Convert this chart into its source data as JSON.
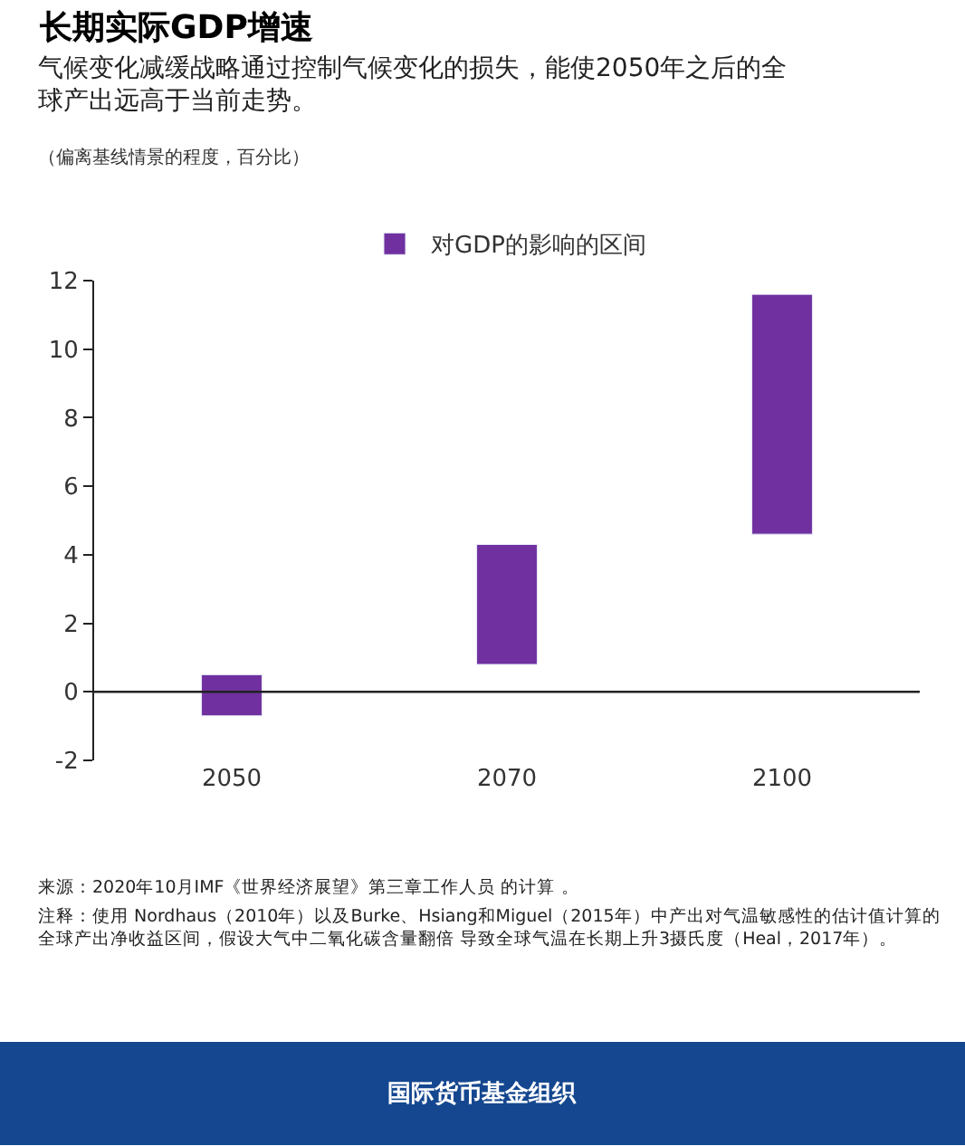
{
  "chart_data": {
    "type": "bar",
    "title": "长期实际GDP增速",
    "subtitle": "气候变化减缓战略通过控制气候变化的损失，能使2050年之后的全球产出远高于当前走势。",
    "categories": [
      "2050",
      "2070",
      "2100"
    ],
    "series": [
      {
        "name": "对GDP的影响的区间",
        "color": "#7030a0",
        "base": [
          -0.7,
          0.8,
          4.6
        ],
        "values": [
          1.2,
          3.5,
          7.0
        ]
      }
    ],
    "ylim": [
      -2,
      12
    ],
    "yticks": [
      -2,
      0,
      2,
      4,
      6,
      8,
      10,
      12
    ],
    "legend": "top",
    "ref_lines": [
      {
        "axis": "y",
        "value": 0,
        "color": "#222222"
      }
    ],
    "annotations": [
      "（偏离基线情景的程度，百分比）",
      "来源：2020年10月IMF《世界经济展望》第三章工作人员 的计算 。",
      "注释：使用 Nordhaus（2010年）以及Burke、Hsiang和Miguel（2015年）中产出对气温敏感性的估计值计算的全球产出净收益区间，假设大气中二氧化碳含量翻倍 导致全球气温在长期上升3摄氏度（Heal，2017年）。",
      "国际货币基金组织"
    ]
  }
}
